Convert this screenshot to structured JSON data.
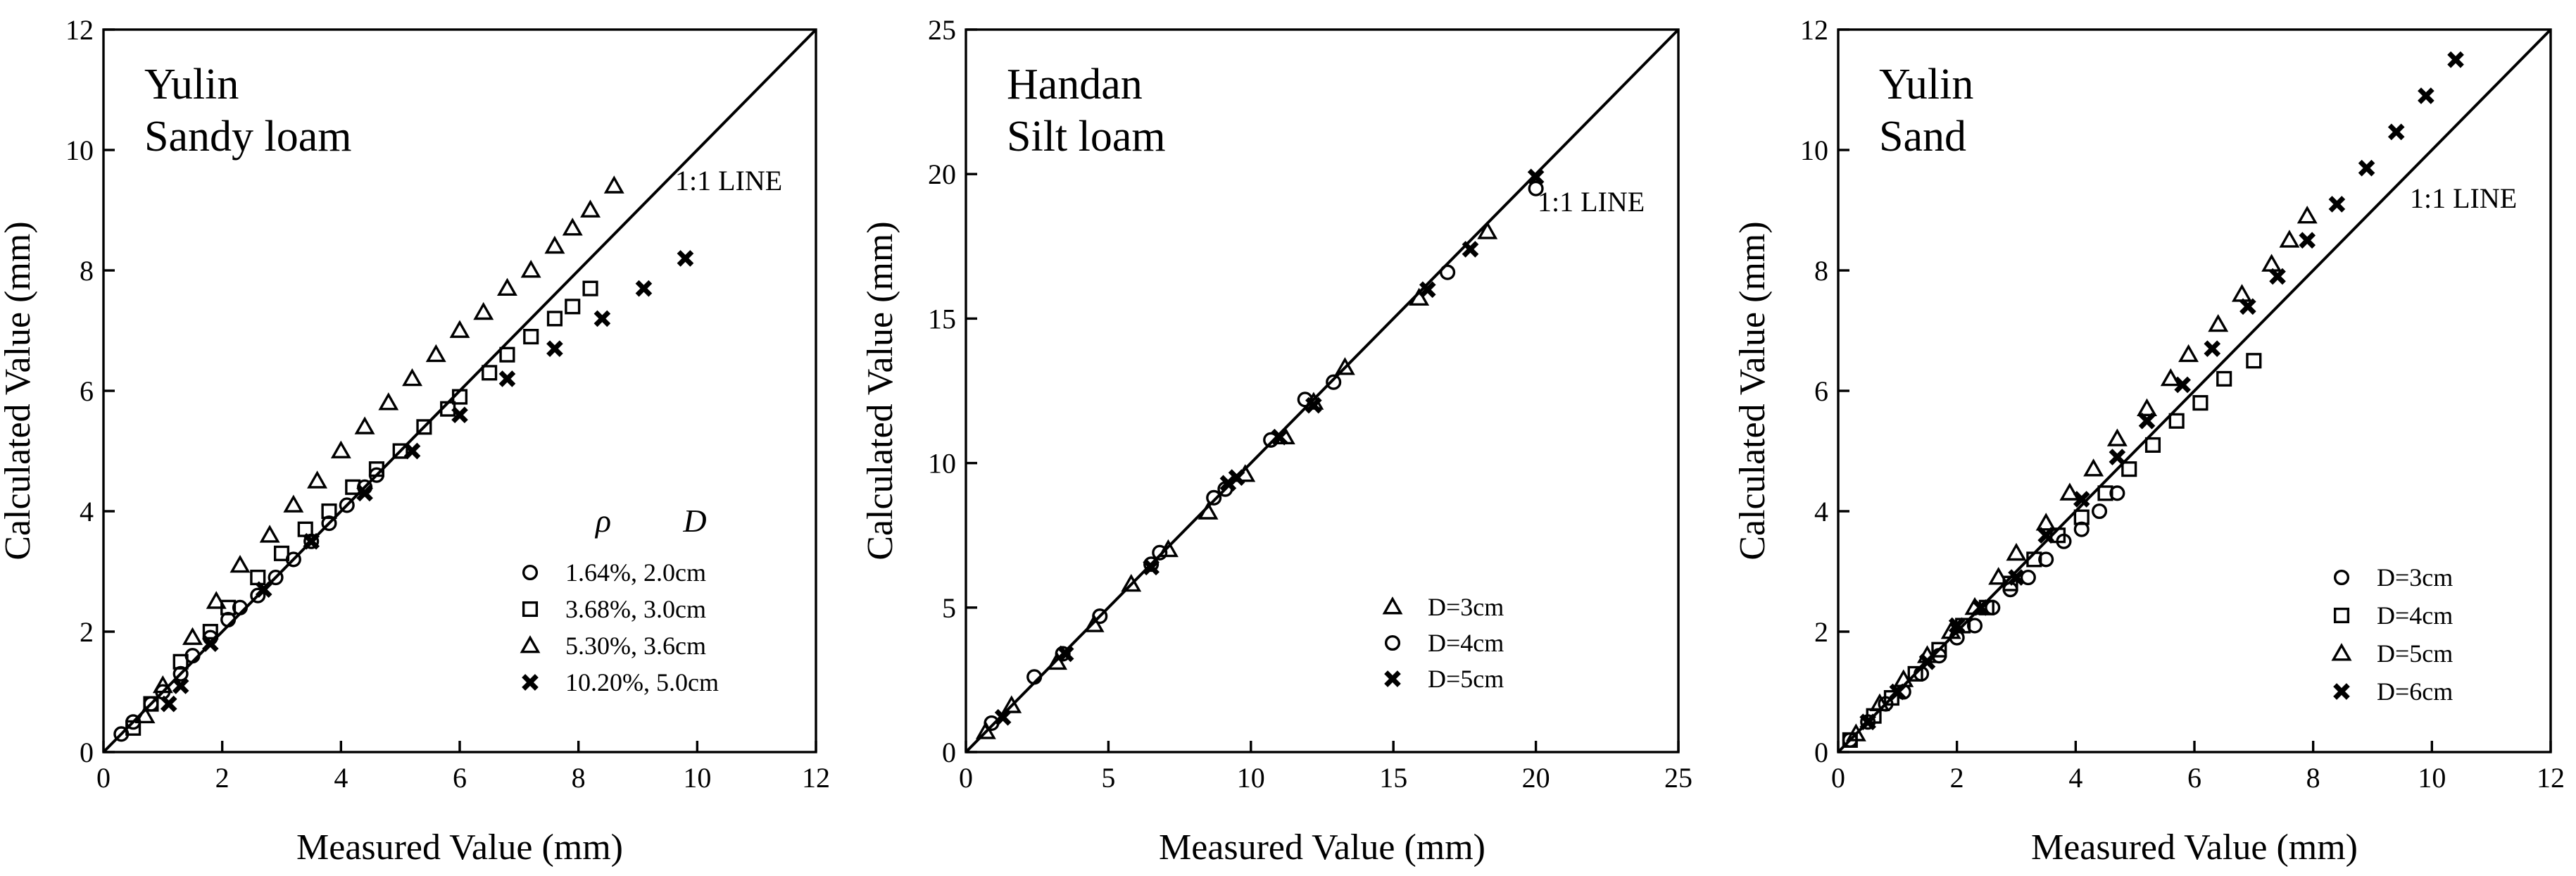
{
  "chart_data": [
    {
      "type": "scatter",
      "title_lines": [
        "Yulin",
        "Sandy loam"
      ],
      "xlabel": "Measured Value (mm)",
      "ylabel": "Calculated Value (mm)",
      "xlim": [
        0,
        12
      ],
      "ylim": [
        0,
        12
      ],
      "xticks": [
        0,
        2,
        4,
        6,
        8,
        10,
        12
      ],
      "yticks": [
        0,
        2,
        4,
        6,
        8,
        10,
        12
      ],
      "reference_line_label": "1:1 LINE",
      "legend_headers": [
        "ρ",
        "D"
      ],
      "legend_position": "bottom-right",
      "series": [
        {
          "name": "1.64%, 2.0cm",
          "marker": "circle",
          "x": [
            0.3,
            0.5,
            0.8,
            1.0,
            1.3,
            1.5,
            1.8,
            2.1,
            2.3,
            2.6,
            2.9,
            3.2,
            3.5,
            3.8,
            4.1,
            4.4,
            4.6
          ],
          "y": [
            0.3,
            0.5,
            0.8,
            1.0,
            1.3,
            1.6,
            1.9,
            2.2,
            2.4,
            2.6,
            2.9,
            3.2,
            3.5,
            3.8,
            4.1,
            4.4,
            4.6
          ]
        },
        {
          "name": "3.68%, 3.0cm",
          "marker": "square",
          "x": [
            0.5,
            0.8,
            1.3,
            1.8,
            2.1,
            2.6,
            3.0,
            3.4,
            3.8,
            4.2,
            4.6,
            5.0,
            5.4,
            5.8,
            6.0,
            6.5,
            6.8,
            7.2,
            7.6,
            7.9,
            8.2
          ],
          "y": [
            0.4,
            0.8,
            1.5,
            2.0,
            2.4,
            2.9,
            3.3,
            3.7,
            4.0,
            4.4,
            4.7,
            5.0,
            5.4,
            5.7,
            5.9,
            6.3,
            6.6,
            6.9,
            7.2,
            7.4,
            7.7
          ]
        },
        {
          "name": "5.30%, 3.6cm",
          "marker": "triangle",
          "x": [
            0.7,
            1.0,
            1.5,
            1.9,
            2.3,
            2.8,
            3.2,
            3.6,
            4.0,
            4.4,
            4.8,
            5.2,
            5.6,
            6.0,
            6.4,
            6.8,
            7.2,
            7.6,
            7.9,
            8.2,
            8.6
          ],
          "y": [
            0.6,
            1.1,
            1.9,
            2.5,
            3.1,
            3.6,
            4.1,
            4.5,
            5.0,
            5.4,
            5.8,
            6.2,
            6.6,
            7.0,
            7.3,
            7.7,
            8.0,
            8.4,
            8.7,
            9.0,
            9.4
          ]
        },
        {
          "name": "10.20%, 5.0cm",
          "marker": "cross",
          "x": [
            1.1,
            1.3,
            1.8,
            2.7,
            3.5,
            4.4,
            5.2,
            6.0,
            6.8,
            7.6,
            8.4,
            9.1,
            9.8
          ],
          "y": [
            0.8,
            1.1,
            1.8,
            2.7,
            3.5,
            4.3,
            5.0,
            5.6,
            6.2,
            6.7,
            7.2,
            7.7,
            8.2
          ]
        }
      ]
    },
    {
      "type": "scatter",
      "title_lines": [
        "Handan",
        "Silt loam"
      ],
      "xlabel": "Measured Value (mm)",
      "ylabel": "Calculated Value (mm)",
      "xlim": [
        0,
        25
      ],
      "ylim": [
        0,
        25
      ],
      "xticks": [
        0,
        5,
        10,
        15,
        20,
        25
      ],
      "yticks": [
        0,
        5,
        10,
        15,
        20,
        25
      ],
      "reference_line_label": "1:1 LINE",
      "legend_headers": [],
      "legend_position": "bottom-right",
      "series": [
        {
          "name": "D=3cm",
          "marker": "triangle",
          "x": [
            0.7,
            1.6,
            3.2,
            4.5,
            5.8,
            7.1,
            8.5,
            9.8,
            11.2,
            12.2,
            13.3,
            15.9,
            18.3
          ],
          "y": [
            0.7,
            1.6,
            3.1,
            4.4,
            5.8,
            7.0,
            8.3,
            9.6,
            10.9,
            12.1,
            13.3,
            15.7,
            18.0
          ]
        },
        {
          "name": "D=4cm",
          "marker": "circle",
          "x": [
            0.9,
            2.4,
            3.4,
            4.7,
            6.5,
            6.8,
            8.7,
            9.1,
            10.7,
            11.9,
            12.9,
            16.9,
            20.0
          ],
          "y": [
            1.0,
            2.6,
            3.4,
            4.7,
            6.5,
            6.9,
            8.8,
            9.1,
            10.8,
            12.2,
            12.8,
            16.6,
            19.5
          ]
        },
        {
          "name": "D=5cm",
          "marker": "cross",
          "x": [
            1.3,
            3.5,
            6.5,
            9.2,
            9.5,
            11.0,
            12.2,
            16.2,
            17.7,
            20.0
          ],
          "y": [
            1.2,
            3.4,
            6.4,
            9.3,
            9.5,
            10.9,
            12.0,
            16.0,
            17.4,
            19.9
          ]
        }
      ]
    },
    {
      "type": "scatter",
      "title_lines": [
        "Yulin",
        "Sand"
      ],
      "xlabel": "Measured Value (mm)",
      "ylabel": "Calculated Value (mm)",
      "xlim": [
        0,
        12
      ],
      "ylim": [
        0,
        12
      ],
      "xticks": [
        0,
        2,
        4,
        6,
        8,
        10,
        12
      ],
      "yticks": [
        0,
        2,
        4,
        6,
        8,
        10,
        12
      ],
      "reference_line_label": "1:1 LINE",
      "legend_headers": [],
      "legend_position": "bottom-right",
      "series": [
        {
          "name": "D=3cm",
          "marker": "circle",
          "x": [
            0.2,
            0.5,
            0.8,
            1.1,
            1.4,
            1.7,
            2.0,
            2.3,
            2.6,
            2.9,
            3.2,
            3.5,
            3.8,
            4.1,
            4.4,
            4.7
          ],
          "y": [
            0.2,
            0.5,
            0.8,
            1.0,
            1.3,
            1.6,
            1.9,
            2.1,
            2.4,
            2.7,
            2.9,
            3.2,
            3.5,
            3.7,
            4.0,
            4.3
          ]
        },
        {
          "name": "D=4cm",
          "marker": "square",
          "x": [
            0.2,
            0.6,
            0.9,
            1.3,
            1.7,
            2.1,
            2.5,
            2.9,
            3.3,
            3.7,
            4.1,
            4.5,
            4.9,
            5.3,
            5.7,
            6.1,
            6.5,
            7.0
          ],
          "y": [
            0.2,
            0.6,
            0.9,
            1.3,
            1.7,
            2.1,
            2.4,
            2.8,
            3.2,
            3.6,
            3.9,
            4.3,
            4.7,
            5.1,
            5.5,
            5.8,
            6.2,
            6.5
          ]
        },
        {
          "name": "D=5cm",
          "marker": "triangle",
          "x": [
            0.3,
            0.7,
            1.1,
            1.5,
            1.9,
            2.3,
            2.7,
            3.0,
            3.5,
            3.9,
            4.3,
            4.7,
            5.2,
            5.6,
            5.9,
            6.4,
            6.8,
            7.3,
            7.6,
            7.9
          ],
          "y": [
            0.3,
            0.8,
            1.2,
            1.6,
            2.0,
            2.4,
            2.9,
            3.3,
            3.8,
            4.3,
            4.7,
            5.2,
            5.7,
            6.2,
            6.6,
            7.1,
            7.6,
            8.1,
            8.5,
            8.9
          ]
        },
        {
          "name": "D=6cm",
          "marker": "cross",
          "x": [
            0.5,
            1.0,
            1.5,
            2.0,
            2.4,
            3.0,
            3.5,
            4.1,
            4.7,
            5.2,
            5.8,
            6.3,
            6.9,
            7.4,
            7.9,
            8.4,
            8.9,
            9.4,
            9.9,
            10.4
          ],
          "y": [
            0.5,
            1.0,
            1.5,
            2.1,
            2.4,
            2.9,
            3.6,
            4.2,
            4.9,
            5.5,
            6.1,
            6.7,
            7.4,
            7.9,
            8.5,
            9.1,
            9.7,
            10.3,
            10.9,
            11.5
          ]
        }
      ]
    }
  ]
}
